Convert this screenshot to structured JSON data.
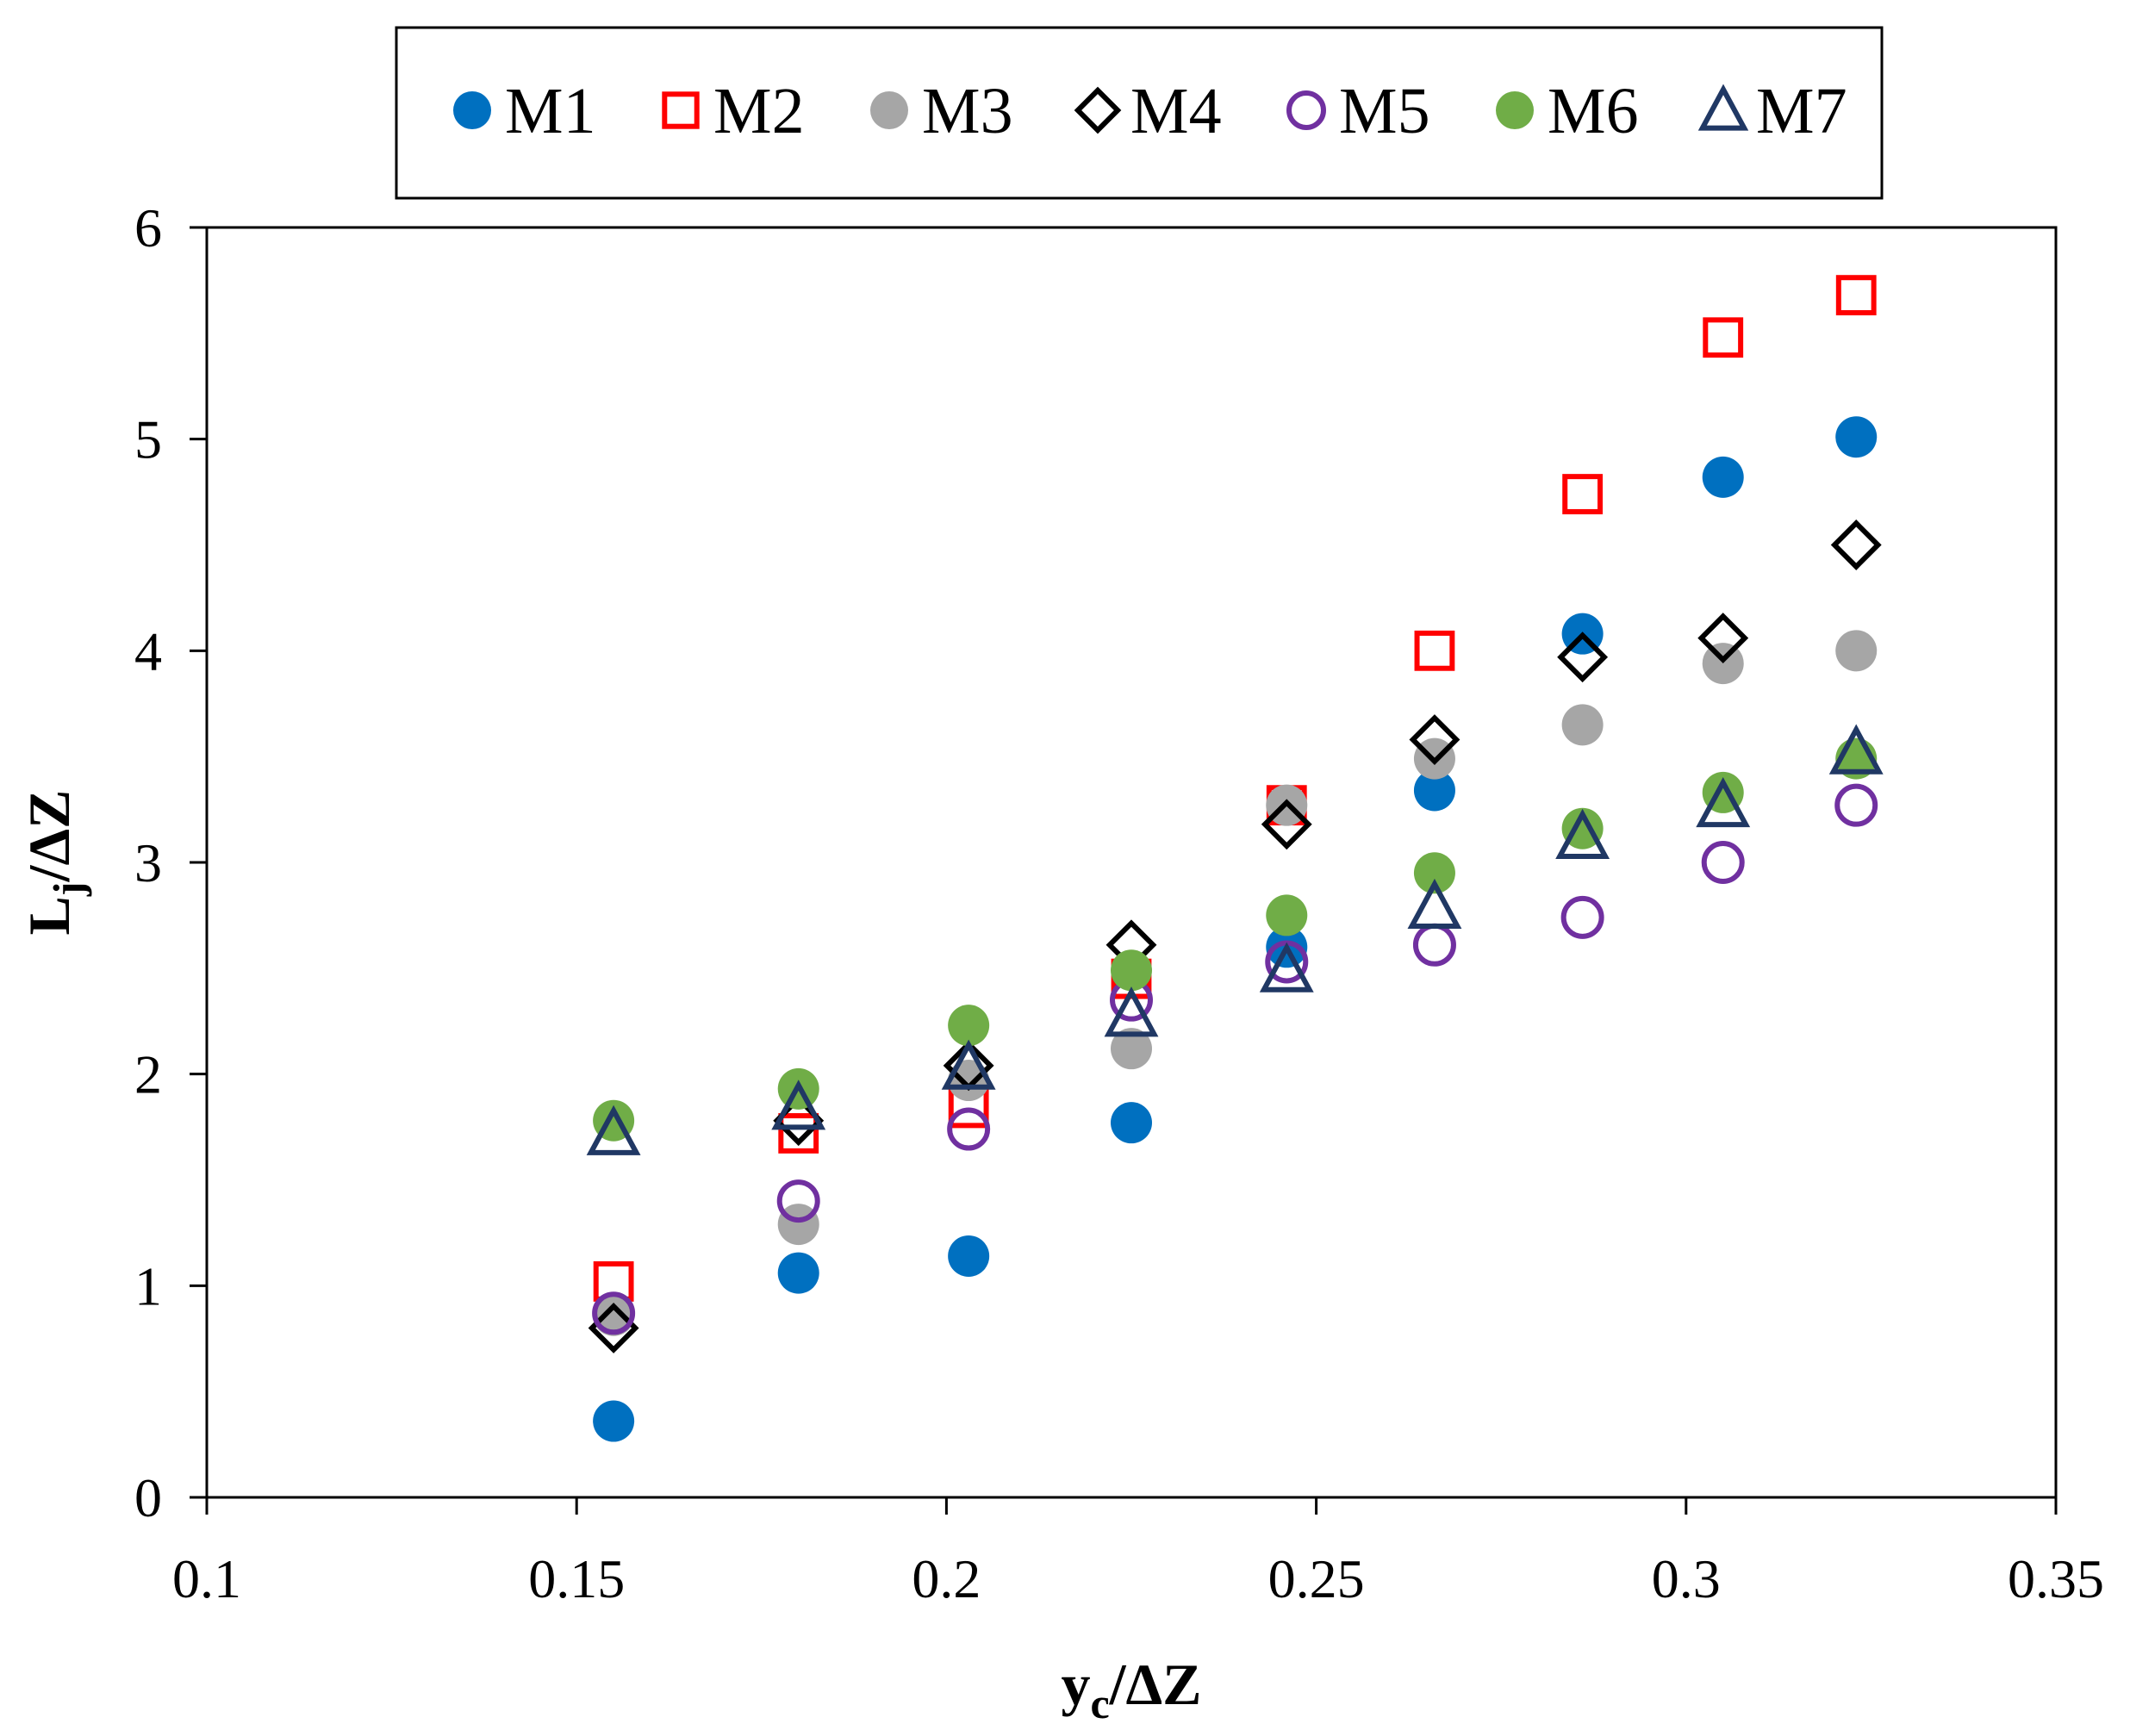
{
  "chart_data": {
    "type": "scatter",
    "title": "",
    "xlabel": {
      "main": "y",
      "sub": "c",
      "rest": "/ΔZ"
    },
    "ylabel": {
      "main": "L",
      "sub": "j",
      "rest": "/ΔZ"
    },
    "xlim": [
      0.1,
      0.35
    ],
    "ylim": [
      0,
      6
    ],
    "xticks": [
      0.1,
      0.15,
      0.2,
      0.25,
      0.3,
      0.35
    ],
    "xtick_labels": [
      "0.1",
      "0.15",
      "0.2",
      "0.25",
      "0.3",
      "0.35"
    ],
    "yticks": [
      0,
      1,
      2,
      3,
      4,
      5,
      6
    ],
    "ytick_labels": [
      "0",
      "1",
      "2",
      "3",
      "4",
      "5",
      "6"
    ],
    "grid": false,
    "legend_position": "top",
    "x": [
      0.155,
      0.18,
      0.203,
      0.225,
      0.246,
      0.266,
      0.286,
      0.305,
      0.323
    ],
    "series": [
      {
        "name": "M1",
        "marker": "filled-circle",
        "color": "#0070C0",
        "values": [
          0.36,
          1.06,
          1.14,
          1.77,
          2.6,
          3.34,
          4.08,
          4.82,
          5.01
        ]
      },
      {
        "name": "M2",
        "marker": "open-square",
        "color": "#FF0000",
        "values": [
          1.02,
          1.72,
          1.84,
          2.45,
          3.27,
          4.0,
          4.74,
          5.48,
          5.68
        ]
      },
      {
        "name": "M3",
        "marker": "filled-circle",
        "color": "#A6A6A6",
        "values": [
          0.86,
          1.29,
          1.97,
          2.12,
          3.27,
          3.49,
          3.65,
          3.94,
          4.0
        ]
      },
      {
        "name": "M4",
        "marker": "open-diamond",
        "color": "#000000",
        "values": [
          0.8,
          1.78,
          2.04,
          2.61,
          3.18,
          3.58,
          3.97,
          4.06,
          4.5
        ]
      },
      {
        "name": "M5",
        "marker": "open-circle",
        "color": "#7030A0",
        "values": [
          0.87,
          1.4,
          1.74,
          2.35,
          2.53,
          2.61,
          2.74,
          3.0,
          3.27
        ]
      },
      {
        "name": "M6",
        "marker": "filled-circle",
        "color": "#70AD47",
        "values": [
          1.78,
          1.93,
          2.23,
          2.49,
          2.75,
          2.95,
          3.16,
          3.33,
          3.49
        ]
      },
      {
        "name": "M7",
        "marker": "open-triangle",
        "color": "#203864",
        "values": [
          1.72,
          1.84,
          2.03,
          2.28,
          2.49,
          2.79,
          3.12,
          3.27,
          3.52
        ]
      }
    ]
  }
}
